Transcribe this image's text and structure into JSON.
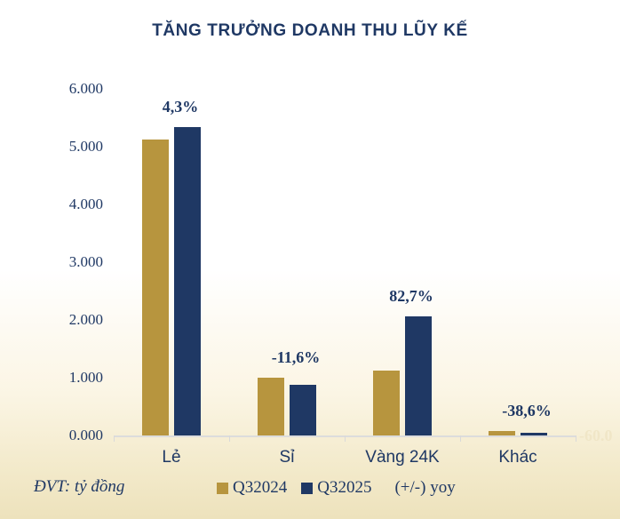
{
  "chart_data": {
    "type": "bar",
    "title": "TĂNG TRƯỞNG DOANH THU LŨY KẾ",
    "unit_note": "ĐVT: tỷ đồng",
    "categories": [
      "Lẻ",
      "Sỉ",
      "Vàng 24K",
      "Khác"
    ],
    "series": [
      {
        "name": "Q32024",
        "color": "#B7953E",
        "values": [
          5120,
          1000,
          1130,
          70
        ]
      },
      {
        "name": "Q32025",
        "color": "#1F3864",
        "values": [
          5340,
          884,
          2065,
          43
        ]
      }
    ],
    "yoy_labels": [
      "4,3%",
      "-11,6%",
      "82,7%",
      "-38,6%"
    ],
    "legend_extra": "(+/-) yoy",
    "y_ticks": [
      "0.000",
      "1.000",
      "2.000",
      "3.000",
      "4.000",
      "5.000",
      "6.000"
    ],
    "ylim": [
      0,
      6000
    ],
    "grid": false,
    "legend_position": "bottom",
    "secondary_axis_fragment": "-60.0",
    "colors": {
      "navy": "#1F3864",
      "gold": "#B7953E",
      "axis_line": "#D9D9D9",
      "background_bottom": "#EDE2BC"
    }
  }
}
